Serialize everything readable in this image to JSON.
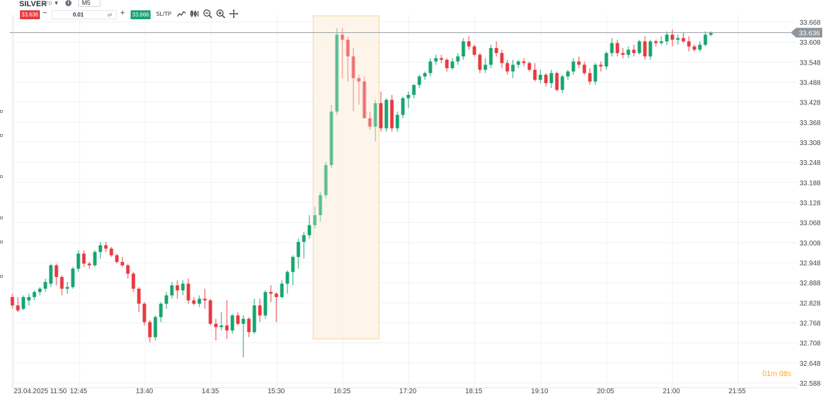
{
  "toolbar": {
    "symbol": "SILVER",
    "symbol_type": "CFD",
    "timeframe": "M5",
    "sell_price": "33.636",
    "quantity": "0.01",
    "buy_price": "33.666",
    "sltp_label": "SL/TP",
    "icons": [
      "chart-type-icon",
      "indicators-icon",
      "zoom-out-icon",
      "zoom-in-icon",
      "crosshair-icon"
    ]
  },
  "chart_data": {
    "type": "candlestick",
    "x_tick_labels": [
      "23.04.2025 11:50",
      "12:45",
      "13:40",
      "14:35",
      "15:30",
      "16:25",
      "17:20",
      "18:15",
      "19:10",
      "20:05",
      "21:00",
      "21:55"
    ],
    "y_tick_labels": [
      "33.668",
      "33.608",
      "33.548",
      "33.488",
      "33.428",
      "33.368",
      "33.308",
      "33.248",
      "33.188",
      "33.128",
      "33.068",
      "33.008",
      "32.948",
      "32.888",
      "32.828",
      "32.768",
      "32.708",
      "32.648",
      "32.588"
    ],
    "ylim": [
      32.588,
      33.668
    ],
    "current_price": "33.636",
    "grid": true,
    "highlight_range": [
      "16:00",
      "16:55"
    ],
    "colors": {
      "up": "#16a56e",
      "down": "#e8393f",
      "highlight": "#fdf3e6",
      "price_line": "#9aa0a6"
    },
    "candles": [
      [
        32.845,
        32.855,
        32.81,
        32.82
      ],
      [
        32.82,
        32.845,
        32.8,
        32.805
      ],
      [
        32.81,
        32.85,
        32.805,
        32.845
      ],
      [
        32.835,
        32.855,
        32.82,
        32.845
      ],
      [
        32.845,
        32.865,
        32.835,
        32.86
      ],
      [
        32.86,
        32.875,
        32.85,
        32.87
      ],
      [
        32.87,
        32.9,
        32.86,
        32.89
      ],
      [
        32.885,
        32.945,
        32.875,
        32.94
      ],
      [
        32.94,
        32.945,
        32.88,
        32.905
      ],
      [
        32.905,
        32.91,
        32.85,
        32.87
      ],
      [
        32.87,
        32.89,
        32.855,
        32.875
      ],
      [
        32.875,
        32.935,
        32.87,
        32.93
      ],
      [
        32.93,
        32.985,
        32.92,
        32.975
      ],
      [
        32.975,
        32.985,
        32.935,
        32.945
      ],
      [
        32.945,
        32.95,
        32.93,
        32.94
      ],
      [
        32.94,
        32.985,
        32.935,
        32.98
      ],
      [
        32.98,
        33.01,
        32.96,
        33.0
      ],
      [
        33.0,
        33.01,
        32.98,
        32.99
      ],
      [
        32.99,
        32.995,
        32.965,
        32.97
      ],
      [
        32.97,
        32.975,
        32.945,
        32.95
      ],
      [
        32.95,
        32.965,
        32.935,
        32.94
      ],
      [
        32.94,
        32.945,
        32.9,
        32.915
      ],
      [
        32.915,
        32.92,
        32.86,
        32.87
      ],
      [
        32.87,
        32.875,
        32.8,
        32.825
      ],
      [
        32.825,
        32.83,
        32.76,
        32.77
      ],
      [
        32.77,
        32.775,
        32.71,
        32.725
      ],
      [
        32.725,
        32.79,
        32.715,
        32.785
      ],
      [
        32.785,
        32.83,
        32.77,
        32.825
      ],
      [
        32.825,
        32.86,
        32.81,
        32.85
      ],
      [
        32.85,
        32.89,
        32.84,
        32.88
      ],
      [
        32.88,
        32.895,
        32.84,
        32.865
      ],
      [
        32.865,
        32.895,
        32.85,
        32.885
      ],
      [
        32.885,
        32.9,
        32.825,
        32.835
      ],
      [
        32.835,
        32.845,
        32.82,
        32.825
      ],
      [
        32.825,
        32.85,
        32.815,
        32.84
      ],
      [
        32.84,
        32.87,
        32.81,
        32.835
      ],
      [
        32.835,
        32.84,
        32.76,
        32.765
      ],
      [
        32.765,
        32.78,
        32.715,
        32.755
      ],
      [
        32.755,
        32.8,
        32.745,
        32.76
      ],
      [
        32.76,
        32.835,
        32.72,
        32.745
      ],
      [
        32.745,
        32.795,
        32.735,
        32.79
      ],
      [
        32.79,
        32.8,
        32.76,
        32.765
      ],
      [
        32.765,
        32.79,
        32.665,
        32.78
      ],
      [
        32.78,
        32.785,
        32.725,
        32.74
      ],
      [
        32.74,
        32.84,
        32.735,
        32.82
      ],
      [
        32.82,
        32.84,
        32.77,
        32.79
      ],
      [
        32.79,
        32.865,
        32.78,
        32.86
      ],
      [
        32.86,
        32.88,
        32.83,
        32.855
      ],
      [
        32.855,
        32.86,
        32.77,
        32.845
      ],
      [
        32.845,
        32.895,
        32.84,
        32.885
      ],
      [
        32.885,
        32.925,
        32.855,
        32.92
      ],
      [
        32.92,
        32.97,
        32.88,
        32.965
      ],
      [
        32.965,
        33.02,
        32.93,
        33.01
      ],
      [
        33.01,
        33.04,
        32.96,
        33.03
      ],
      [
        33.03,
        33.09,
        33.02,
        33.06
      ],
      [
        33.06,
        33.115,
        33.05,
        33.09
      ],
      [
        33.09,
        33.16,
        33.07,
        33.15
      ],
      [
        33.15,
        33.25,
        33.14,
        33.24
      ],
      [
        33.24,
        33.42,
        33.23,
        33.4
      ],
      [
        33.4,
        33.65,
        33.39,
        33.63
      ],
      [
        33.63,
        33.65,
        33.5,
        33.615
      ],
      [
        33.615,
        33.625,
        33.49,
        33.565
      ],
      [
        33.565,
        33.59,
        33.4,
        33.5
      ],
      [
        33.5,
        33.51,
        33.42,
        33.49
      ],
      [
        33.49,
        33.505,
        33.38,
        33.38
      ],
      [
        33.38,
        33.4,
        33.345,
        33.355
      ],
      [
        33.355,
        33.435,
        33.31,
        33.425
      ],
      [
        33.425,
        33.46,
        33.34,
        33.35
      ],
      [
        33.35,
        33.44,
        33.34,
        33.435
      ],
      [
        33.435,
        33.45,
        33.34,
        33.35
      ],
      [
        33.35,
        33.4,
        33.34,
        33.39
      ],
      [
        33.39,
        33.445,
        33.38,
        33.44
      ],
      [
        33.44,
        33.46,
        33.41,
        33.45
      ],
      [
        33.45,
        33.48,
        33.44,
        33.48
      ],
      [
        33.48,
        33.51,
        33.47,
        33.505
      ],
      [
        33.505,
        33.52,
        33.495,
        33.515
      ],
      [
        33.515,
        33.56,
        33.505,
        33.55
      ],
      [
        33.55,
        33.57,
        33.54,
        33.56
      ],
      [
        33.56,
        33.57,
        33.545,
        33.555
      ],
      [
        33.555,
        33.56,
        33.52,
        33.53
      ],
      [
        33.53,
        33.56,
        33.525,
        33.55
      ],
      [
        33.55,
        33.575,
        33.54,
        33.565
      ],
      [
        33.565,
        33.62,
        33.555,
        33.61
      ],
      [
        33.61,
        33.625,
        33.585,
        33.595
      ],
      [
        33.595,
        33.6,
        33.565,
        33.57
      ],
      [
        33.57,
        33.575,
        33.515,
        33.525
      ],
      [
        33.525,
        33.56,
        33.515,
        33.54
      ],
      [
        33.54,
        33.6,
        33.53,
        33.59
      ],
      [
        33.59,
        33.61,
        33.565,
        33.575
      ],
      [
        33.575,
        33.585,
        33.53,
        33.545
      ],
      [
        33.545,
        33.555,
        33.51,
        33.52
      ],
      [
        33.52,
        33.555,
        33.5,
        33.54
      ],
      [
        33.54,
        33.555,
        33.53,
        33.55
      ],
      [
        33.55,
        33.56,
        33.535,
        33.545
      ],
      [
        33.545,
        33.55,
        33.52,
        33.525
      ],
      [
        33.525,
        33.545,
        33.49,
        33.495
      ],
      [
        33.495,
        33.525,
        33.485,
        33.51
      ],
      [
        33.51,
        33.515,
        33.475,
        33.485
      ],
      [
        33.485,
        33.525,
        33.47,
        33.515
      ],
      [
        33.515,
        33.52,
        33.46,
        33.465
      ],
      [
        33.465,
        33.51,
        33.455,
        33.505
      ],
      [
        33.505,
        33.525,
        33.495,
        33.52
      ],
      [
        33.52,
        33.56,
        33.51,
        33.55
      ],
      [
        33.55,
        33.565,
        33.53,
        33.54
      ],
      [
        33.54,
        33.55,
        33.51,
        33.515
      ],
      [
        33.515,
        33.53,
        33.48,
        33.49
      ],
      [
        33.49,
        33.545,
        33.48,
        33.54
      ],
      [
        33.54,
        33.55,
        33.52,
        33.535
      ],
      [
        33.535,
        33.58,
        33.525,
        33.575
      ],
      [
        33.575,
        33.62,
        33.565,
        33.605
      ],
      [
        33.605,
        33.615,
        33.565,
        33.575
      ],
      [
        33.575,
        33.59,
        33.56,
        33.57
      ],
      [
        33.57,
        33.595,
        33.56,
        33.585
      ],
      [
        33.585,
        33.6,
        33.565,
        33.575
      ],
      [
        33.575,
        33.615,
        33.57,
        33.61
      ],
      [
        33.61,
        33.625,
        33.555,
        33.565
      ],
      [
        33.565,
        33.615,
        33.555,
        33.61
      ],
      [
        33.61,
        33.615,
        33.595,
        33.605
      ],
      [
        33.605,
        33.625,
        33.6,
        33.61
      ],
      [
        33.61,
        33.64,
        33.6,
        33.63
      ],
      [
        33.63,
        33.645,
        33.595,
        33.615
      ],
      [
        33.615,
        33.63,
        33.6,
        33.62
      ],
      [
        33.62,
        33.635,
        33.605,
        33.61
      ],
      [
        33.61,
        33.625,
        33.58,
        33.595
      ],
      [
        33.595,
        33.6,
        33.58,
        33.585
      ],
      [
        33.585,
        33.61,
        33.58,
        33.6
      ],
      [
        33.6,
        33.64,
        33.595,
        33.63
      ],
      [
        33.63,
        33.64,
        33.625,
        33.636
      ]
    ]
  },
  "timer": {
    "minutes": "01",
    "minutes_unit": "m",
    "seconds": "08",
    "seconds_unit": "s"
  }
}
